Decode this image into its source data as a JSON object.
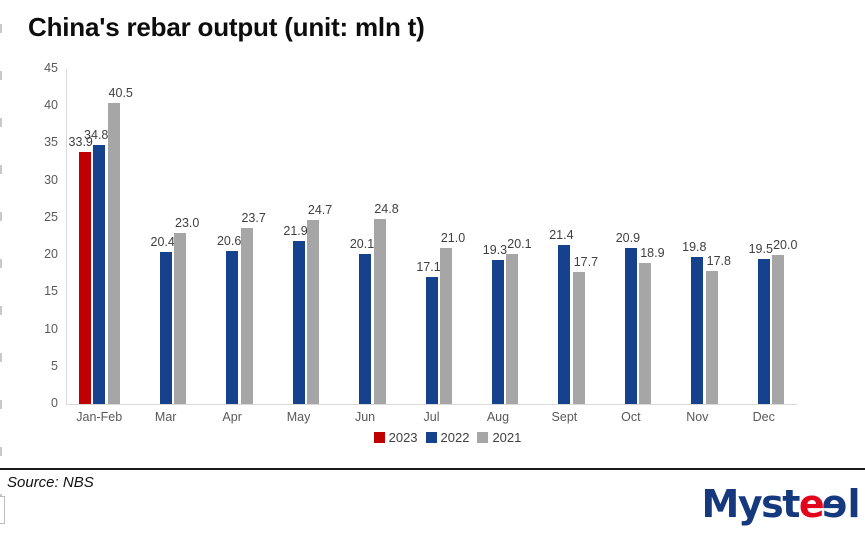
{
  "title": "China's rebar output (unit: mln t)",
  "chart_data": {
    "type": "bar",
    "categories": [
      "Jan-Feb",
      "Mar",
      "Apr",
      "May",
      "Jun",
      "Jul",
      "Aug",
      "Sept",
      "Oct",
      "Nov",
      "Dec"
    ],
    "series": [
      {
        "name": "2023",
        "color": "#c00000",
        "values": [
          33.9,
          null,
          null,
          null,
          null,
          null,
          null,
          null,
          null,
          null,
          null
        ]
      },
      {
        "name": "2022",
        "color": "#16418c",
        "values": [
          34.8,
          20.4,
          20.6,
          21.9,
          20.1,
          17.1,
          19.3,
          21.4,
          20.9,
          19.8,
          19.5
        ]
      },
      {
        "name": "2021",
        "color": "#a6a6a6",
        "values": [
          40.5,
          23.0,
          23.7,
          24.7,
          24.8,
          21.0,
          20.1,
          17.7,
          18.9,
          17.8,
          20.0
        ]
      }
    ],
    "title": "China's rebar output (unit: mln t)",
    "xlabel": "",
    "ylabel": "",
    "ylim": [
      0,
      45
    ],
    "ytick_step": 5,
    "grid": false,
    "legend_position": "bottom",
    "data_labels": true
  },
  "footer": {
    "source": "Source: NBS",
    "logo": {
      "parts": [
        {
          "text": "Myst",
          "color": "#16387f",
          "flip": false
        },
        {
          "text": "e",
          "color": "#e3051b",
          "flip": false
        },
        {
          "text": "e",
          "color": "#16387f",
          "flip": true
        },
        {
          "text": "l",
          "color": "#16387f",
          "flip": false
        }
      ]
    }
  },
  "colors": {
    "axis_line": "#d9d9d9",
    "tick_text": "#595959",
    "data_label_text": "#3f3f3f",
    "divider": "#1a1a1a"
  }
}
